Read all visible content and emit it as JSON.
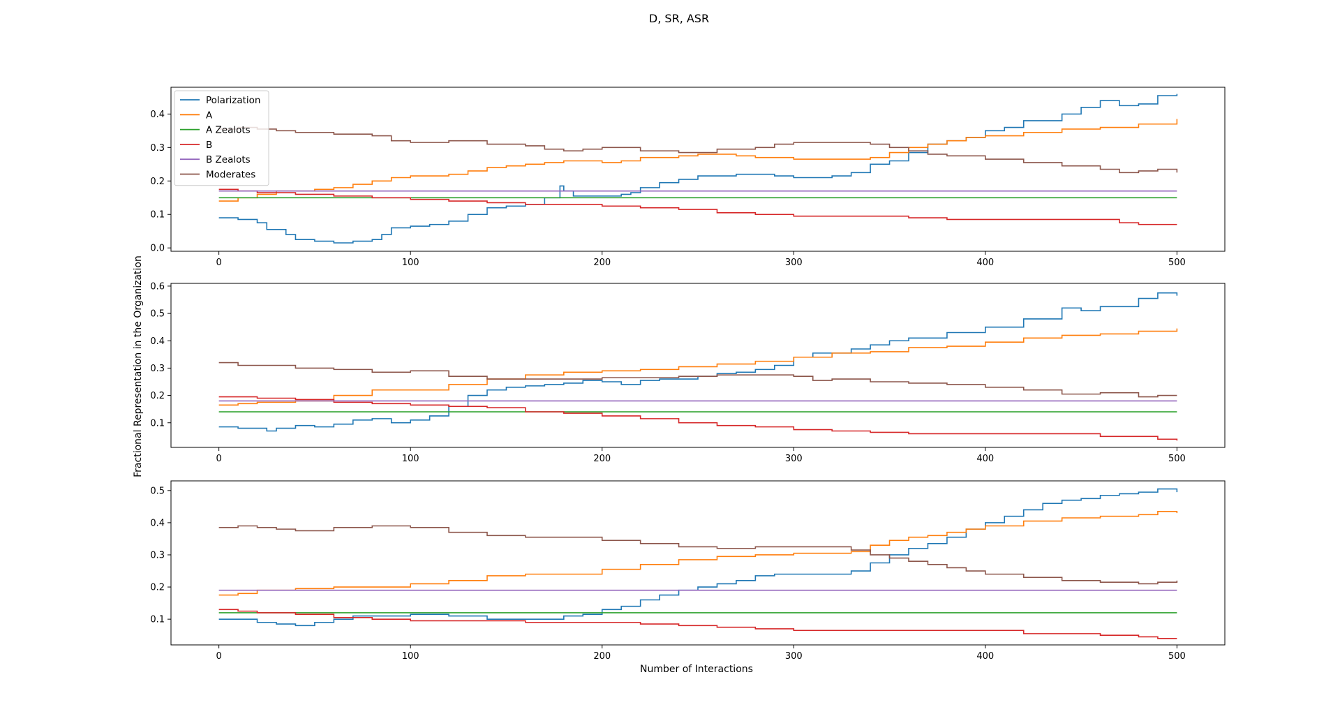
{
  "figure": {
    "title": "D, SR, ASR",
    "xlabel": "Number of Interactions",
    "ylabel": "Fractional Representation in the Organization"
  },
  "legend": {
    "placement": "upper-left of top panel",
    "entries": [
      "Polarization",
      "A",
      "A Zealots",
      "B",
      "B Zealots",
      "Moderates"
    ]
  },
  "colors": {
    "Polarization": "#1f77b4",
    "A": "#ff7f0e",
    "A Zealots": "#2ca02c",
    "B": "#d62728",
    "B Zealots": "#9467bd",
    "Moderates": "#8c564b"
  },
  "chart_data": [
    {
      "type": "line",
      "xlim": [
        -25,
        525
      ],
      "ylim": [
        -0.01,
        0.48
      ],
      "xticks": [
        0,
        100,
        200,
        300,
        400,
        500
      ],
      "yticks": [
        0.0,
        0.1,
        0.2,
        0.3,
        0.4
      ],
      "ytick_labels": [
        "0.0",
        "0.1",
        "0.2",
        "0.3",
        "0.4"
      ],
      "xtick_labels": [
        "0",
        "100",
        "200",
        "300",
        "400",
        "500"
      ],
      "series": [
        {
          "name": "Polarization",
          "x": [
            0,
            10,
            20,
            25,
            35,
            40,
            50,
            60,
            70,
            80,
            85,
            90,
            100,
            110,
            120,
            130,
            140,
            150,
            160,
            170,
            178,
            180,
            185,
            200,
            210,
            215,
            220,
            230,
            240,
            250,
            260,
            270,
            280,
            290,
            300,
            320,
            330,
            340,
            350,
            360,
            370,
            380,
            390,
            400,
            410,
            420,
            440,
            450,
            460,
            470,
            480,
            490,
            500
          ],
          "y": [
            0.09,
            0.085,
            0.075,
            0.055,
            0.04,
            0.025,
            0.02,
            0.015,
            0.02,
            0.025,
            0.04,
            0.06,
            0.065,
            0.07,
            0.08,
            0.1,
            0.12,
            0.125,
            0.13,
            0.15,
            0.185,
            0.17,
            0.155,
            0.155,
            0.16,
            0.165,
            0.18,
            0.195,
            0.205,
            0.215,
            0.215,
            0.22,
            0.22,
            0.215,
            0.21,
            0.215,
            0.225,
            0.25,
            0.26,
            0.285,
            0.31,
            0.32,
            0.33,
            0.35,
            0.36,
            0.38,
            0.4,
            0.42,
            0.44,
            0.425,
            0.43,
            0.455,
            0.46
          ]
        },
        {
          "name": "A",
          "x": [
            0,
            10,
            20,
            30,
            50,
            60,
            70,
            80,
            90,
            100,
            120,
            130,
            140,
            150,
            160,
            170,
            180,
            200,
            210,
            220,
            240,
            250,
            270,
            280,
            300,
            320,
            340,
            350,
            360,
            370,
            380,
            390,
            400,
            420,
            440,
            460,
            480,
            500
          ],
          "y": [
            0.14,
            0.15,
            0.16,
            0.17,
            0.175,
            0.18,
            0.19,
            0.2,
            0.21,
            0.215,
            0.22,
            0.23,
            0.24,
            0.245,
            0.25,
            0.255,
            0.26,
            0.255,
            0.26,
            0.27,
            0.275,
            0.28,
            0.275,
            0.27,
            0.265,
            0.265,
            0.27,
            0.285,
            0.3,
            0.31,
            0.32,
            0.33,
            0.335,
            0.345,
            0.355,
            0.36,
            0.37,
            0.385
          ]
        },
        {
          "name": "A Zealots",
          "x": [
            0,
            500
          ],
          "y": [
            0.15,
            0.15
          ]
        },
        {
          "name": "B",
          "x": [
            0,
            10,
            20,
            40,
            60,
            80,
            100,
            120,
            140,
            160,
            180,
            200,
            220,
            240,
            260,
            280,
            300,
            320,
            340,
            360,
            380,
            400,
            420,
            440,
            460,
            470,
            480,
            500
          ],
          "y": [
            0.175,
            0.17,
            0.165,
            0.16,
            0.155,
            0.15,
            0.145,
            0.14,
            0.135,
            0.13,
            0.13,
            0.125,
            0.12,
            0.115,
            0.105,
            0.1,
            0.095,
            0.095,
            0.095,
            0.09,
            0.085,
            0.085,
            0.085,
            0.085,
            0.085,
            0.075,
            0.07,
            0.07
          ]
        },
        {
          "name": "B Zealots",
          "x": [
            0,
            500
          ],
          "y": [
            0.17,
            0.17
          ]
        },
        {
          "name": "Moderates",
          "x": [
            0,
            10,
            20,
            30,
            40,
            60,
            80,
            90,
            100,
            110,
            120,
            140,
            160,
            170,
            180,
            190,
            200,
            220,
            240,
            260,
            280,
            290,
            300,
            320,
            340,
            350,
            360,
            370,
            380,
            400,
            420,
            440,
            460,
            470,
            480,
            490,
            500
          ],
          "y": [
            0.355,
            0.36,
            0.355,
            0.35,
            0.345,
            0.34,
            0.335,
            0.32,
            0.315,
            0.315,
            0.32,
            0.31,
            0.305,
            0.295,
            0.29,
            0.295,
            0.3,
            0.29,
            0.285,
            0.295,
            0.3,
            0.31,
            0.315,
            0.315,
            0.31,
            0.3,
            0.29,
            0.28,
            0.275,
            0.265,
            0.255,
            0.245,
            0.235,
            0.225,
            0.23,
            0.235,
            0.225
          ]
        }
      ]
    },
    {
      "type": "line",
      "xlim": [
        -25,
        525
      ],
      "ylim": [
        0.01,
        0.61
      ],
      "xticks": [
        0,
        100,
        200,
        300,
        400,
        500
      ],
      "yticks": [
        0.1,
        0.2,
        0.3,
        0.4,
        0.5,
        0.6
      ],
      "ytick_labels": [
        "0.1",
        "0.2",
        "0.3",
        "0.4",
        "0.5",
        "0.6"
      ],
      "xtick_labels": [
        "0",
        "100",
        "200",
        "300",
        "400",
        "500"
      ],
      "series": [
        {
          "name": "Polarization",
          "x": [
            0,
            10,
            20,
            25,
            30,
            40,
            50,
            60,
            70,
            80,
            90,
            100,
            110,
            120,
            130,
            140,
            150,
            160,
            170,
            180,
            190,
            200,
            210,
            220,
            230,
            240,
            250,
            260,
            270,
            280,
            290,
            300,
            310,
            320,
            330,
            340,
            350,
            360,
            380,
            400,
            420,
            440,
            450,
            460,
            480,
            490,
            500
          ],
          "y": [
            0.085,
            0.08,
            0.08,
            0.07,
            0.08,
            0.09,
            0.085,
            0.095,
            0.11,
            0.115,
            0.1,
            0.11,
            0.125,
            0.16,
            0.2,
            0.22,
            0.23,
            0.235,
            0.24,
            0.245,
            0.255,
            0.25,
            0.24,
            0.255,
            0.26,
            0.26,
            0.27,
            0.28,
            0.285,
            0.295,
            0.31,
            0.34,
            0.355,
            0.355,
            0.37,
            0.385,
            0.4,
            0.41,
            0.43,
            0.45,
            0.48,
            0.52,
            0.51,
            0.525,
            0.555,
            0.575,
            0.565
          ]
        },
        {
          "name": "A",
          "x": [
            0,
            10,
            20,
            40,
            60,
            80,
            100,
            120,
            140,
            160,
            180,
            200,
            220,
            240,
            260,
            280,
            300,
            320,
            340,
            360,
            380,
            400,
            420,
            440,
            460,
            480,
            500
          ],
          "y": [
            0.165,
            0.17,
            0.175,
            0.18,
            0.2,
            0.22,
            0.22,
            0.24,
            0.26,
            0.275,
            0.285,
            0.29,
            0.295,
            0.305,
            0.315,
            0.325,
            0.34,
            0.355,
            0.36,
            0.375,
            0.38,
            0.395,
            0.41,
            0.42,
            0.425,
            0.435,
            0.445
          ]
        },
        {
          "name": "A Zealots",
          "x": [
            0,
            500
          ],
          "y": [
            0.14,
            0.14
          ]
        },
        {
          "name": "B",
          "x": [
            0,
            20,
            40,
            60,
            80,
            100,
            120,
            140,
            160,
            180,
            200,
            220,
            240,
            260,
            280,
            300,
            320,
            340,
            360,
            380,
            400,
            420,
            440,
            460,
            480,
            490,
            500
          ],
          "y": [
            0.195,
            0.19,
            0.185,
            0.175,
            0.17,
            0.165,
            0.16,
            0.155,
            0.14,
            0.135,
            0.125,
            0.115,
            0.1,
            0.09,
            0.085,
            0.075,
            0.07,
            0.065,
            0.06,
            0.06,
            0.06,
            0.06,
            0.06,
            0.05,
            0.05,
            0.04,
            0.035
          ]
        },
        {
          "name": "B Zealots",
          "x": [
            0,
            500
          ],
          "y": [
            0.18,
            0.18
          ]
        },
        {
          "name": "Moderates",
          "x": [
            0,
            10,
            20,
            40,
            60,
            80,
            100,
            120,
            140,
            160,
            180,
            200,
            220,
            240,
            260,
            280,
            300,
            310,
            320,
            340,
            360,
            380,
            400,
            420,
            440,
            460,
            480,
            490,
            500
          ],
          "y": [
            0.32,
            0.31,
            0.31,
            0.3,
            0.295,
            0.285,
            0.29,
            0.27,
            0.26,
            0.26,
            0.26,
            0.265,
            0.265,
            0.27,
            0.275,
            0.275,
            0.27,
            0.255,
            0.26,
            0.25,
            0.245,
            0.24,
            0.23,
            0.22,
            0.205,
            0.21,
            0.195,
            0.2,
            0.2
          ]
        }
      ]
    },
    {
      "type": "line",
      "xlim": [
        -25,
        525
      ],
      "ylim": [
        0.02,
        0.53
      ],
      "xticks": [
        0,
        100,
        200,
        300,
        400,
        500
      ],
      "yticks": [
        0.1,
        0.2,
        0.3,
        0.4,
        0.5
      ],
      "ytick_labels": [
        "0.1",
        "0.2",
        "0.3",
        "0.4",
        "0.5"
      ],
      "xtick_labels": [
        "0",
        "100",
        "200",
        "300",
        "400",
        "500"
      ],
      "series": [
        {
          "name": "Polarization",
          "x": [
            0,
            10,
            20,
            30,
            40,
            50,
            60,
            70,
            80,
            100,
            120,
            140,
            160,
            180,
            190,
            200,
            210,
            220,
            230,
            240,
            250,
            260,
            270,
            280,
            290,
            300,
            320,
            330,
            340,
            350,
            360,
            370,
            380,
            390,
            400,
            410,
            420,
            430,
            440,
            450,
            460,
            470,
            480,
            490,
            500
          ],
          "y": [
            0.1,
            0.1,
            0.09,
            0.085,
            0.08,
            0.09,
            0.1,
            0.11,
            0.11,
            0.115,
            0.11,
            0.1,
            0.1,
            0.11,
            0.115,
            0.13,
            0.14,
            0.16,
            0.175,
            0.19,
            0.2,
            0.21,
            0.22,
            0.235,
            0.24,
            0.24,
            0.24,
            0.25,
            0.275,
            0.3,
            0.32,
            0.335,
            0.355,
            0.38,
            0.4,
            0.42,
            0.44,
            0.46,
            0.47,
            0.475,
            0.485,
            0.49,
            0.495,
            0.505,
            0.495
          ]
        },
        {
          "name": "A",
          "x": [
            0,
            10,
            20,
            40,
            60,
            80,
            100,
            120,
            140,
            160,
            180,
            200,
            220,
            240,
            260,
            280,
            300,
            320,
            330,
            340,
            350,
            360,
            370,
            380,
            390,
            400,
            420,
            440,
            460,
            480,
            490,
            500
          ],
          "y": [
            0.175,
            0.18,
            0.19,
            0.195,
            0.2,
            0.2,
            0.21,
            0.22,
            0.235,
            0.24,
            0.24,
            0.255,
            0.27,
            0.285,
            0.295,
            0.3,
            0.305,
            0.305,
            0.31,
            0.33,
            0.345,
            0.355,
            0.36,
            0.37,
            0.38,
            0.39,
            0.405,
            0.415,
            0.42,
            0.425,
            0.435,
            0.43
          ]
        },
        {
          "name": "A Zealots",
          "x": [
            0,
            500
          ],
          "y": [
            0.12,
            0.12
          ]
        },
        {
          "name": "B",
          "x": [
            0,
            10,
            20,
            40,
            60,
            80,
            100,
            120,
            140,
            160,
            180,
            200,
            220,
            240,
            260,
            280,
            300,
            320,
            340,
            360,
            380,
            400,
            420,
            440,
            460,
            480,
            490,
            500
          ],
          "y": [
            0.13,
            0.125,
            0.12,
            0.115,
            0.105,
            0.1,
            0.095,
            0.095,
            0.095,
            0.09,
            0.09,
            0.09,
            0.085,
            0.08,
            0.075,
            0.07,
            0.065,
            0.065,
            0.065,
            0.065,
            0.065,
            0.065,
            0.055,
            0.055,
            0.05,
            0.045,
            0.04,
            0.04
          ]
        },
        {
          "name": "B Zealots",
          "x": [
            0,
            500
          ],
          "y": [
            0.19,
            0.19
          ]
        },
        {
          "name": "Moderates",
          "x": [
            0,
            10,
            20,
            30,
            40,
            60,
            80,
            100,
            120,
            140,
            160,
            180,
            200,
            220,
            240,
            260,
            280,
            300,
            320,
            330,
            340,
            350,
            360,
            370,
            380,
            390,
            400,
            420,
            440,
            460,
            480,
            490,
            500
          ],
          "y": [
            0.385,
            0.39,
            0.385,
            0.38,
            0.375,
            0.385,
            0.39,
            0.385,
            0.37,
            0.36,
            0.355,
            0.355,
            0.345,
            0.335,
            0.325,
            0.32,
            0.325,
            0.325,
            0.325,
            0.315,
            0.3,
            0.29,
            0.28,
            0.27,
            0.26,
            0.25,
            0.24,
            0.23,
            0.22,
            0.215,
            0.21,
            0.215,
            0.22
          ]
        }
      ]
    }
  ]
}
